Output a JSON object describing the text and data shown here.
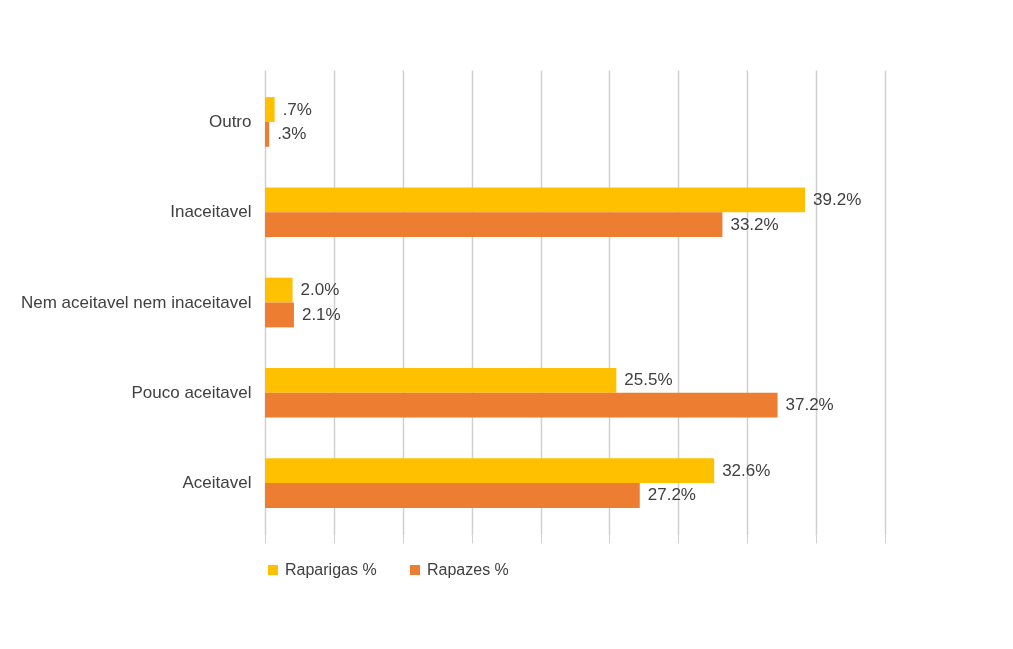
{
  "chart_data": {
    "type": "bar",
    "orientation": "horizontal",
    "categories": [
      "Outro",
      "Inaceitavel",
      "Nem aceitavel nem inaceitavel",
      "Pouco aceitavel",
      "Aceitavel"
    ],
    "series": [
      {
        "name": "Raparigas %",
        "color": "#ffc000",
        "values": [
          0.7,
          39.2,
          2.0,
          25.5,
          32.6
        ],
        "value_labels": [
          ".7%",
          "39.2%",
          "2.0%",
          "25.5%",
          "32.6%"
        ]
      },
      {
        "name": "Rapazes %",
        "color": "#ed7d31",
        "values": [
          0.3,
          33.2,
          2.1,
          37.2,
          27.2
        ],
        "value_labels": [
          ".3%",
          "33.2%",
          "2.1%",
          "37.2%",
          "27.2%"
        ]
      }
    ],
    "xlim": [
      0,
      45
    ],
    "xticks": [
      {
        "value": 0,
        "label": null
      },
      {
        "value": 5,
        "label": null
      },
      {
        "value": 10,
        "label": null
      },
      {
        "value": 15,
        "label": null
      },
      {
        "value": 20,
        "label": null
      },
      {
        "value": 25,
        "label": null
      },
      {
        "value": 30,
        "label": null
      },
      {
        "value": 35,
        "label": null
      },
      {
        "value": 40,
        "label": null
      },
      {
        "value": 45,
        "label": null
      }
    ],
    "tick_labels": "y",
    "grid": "x",
    "legend": "bottom"
  }
}
